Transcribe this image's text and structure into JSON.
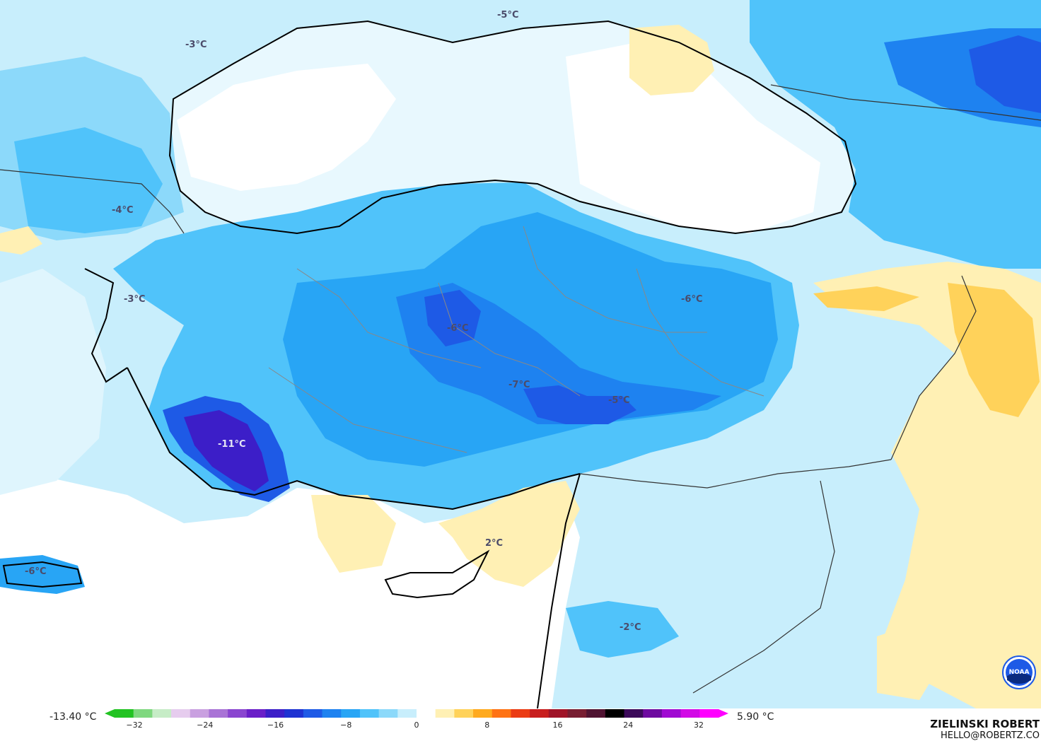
{
  "map": {
    "temperature_labels": [
      {
        "text": "-3°C"
      },
      {
        "text": "-5°C"
      },
      {
        "text": "-4°C"
      },
      {
        "text": "-3°C"
      },
      {
        "text": "-6°C"
      },
      {
        "text": "-6°C"
      },
      {
        "text": "-7°C"
      },
      {
        "text": "-5°C"
      },
      {
        "text": "-11°C"
      },
      {
        "text": "2°C"
      },
      {
        "text": "-6°C"
      },
      {
        "text": "-2°C"
      }
    ]
  },
  "legend": {
    "min_label": "-13.40 °C",
    "max_label": "5.90 °C",
    "ticks": [
      "−32",
      "−24",
      "−16",
      "−8",
      "0",
      "8",
      "16",
      "24",
      "32"
    ],
    "colors": [
      "#22c322",
      "#7fd87f",
      "#c6ecc6",
      "#e6ccee",
      "#c9a0e0",
      "#a973d6",
      "#8a45d0",
      "#6a1ec8",
      "#3c1ec8",
      "#1e32d2",
      "#1e5ae6",
      "#1e82f0",
      "#28a5f5",
      "#50c3fa",
      "#8cd9fa",
      "#c8eefc",
      "#ffffff",
      "#fff0b4",
      "#ffd25a",
      "#ffaa1e",
      "#ff7314",
      "#eb3c14",
      "#c81e1e",
      "#a01428",
      "#781e32",
      "#501432",
      "#000000",
      "#3c0a5a",
      "#6e0aa0",
      "#a00ad2",
      "#d20ae6",
      "#ff00ff"
    ]
  },
  "branding": {
    "author": "ZIELINSKI ROBERT",
    "email": "HELLO@ROBERTZ.CO",
    "logo_text": "NOAA"
  }
}
